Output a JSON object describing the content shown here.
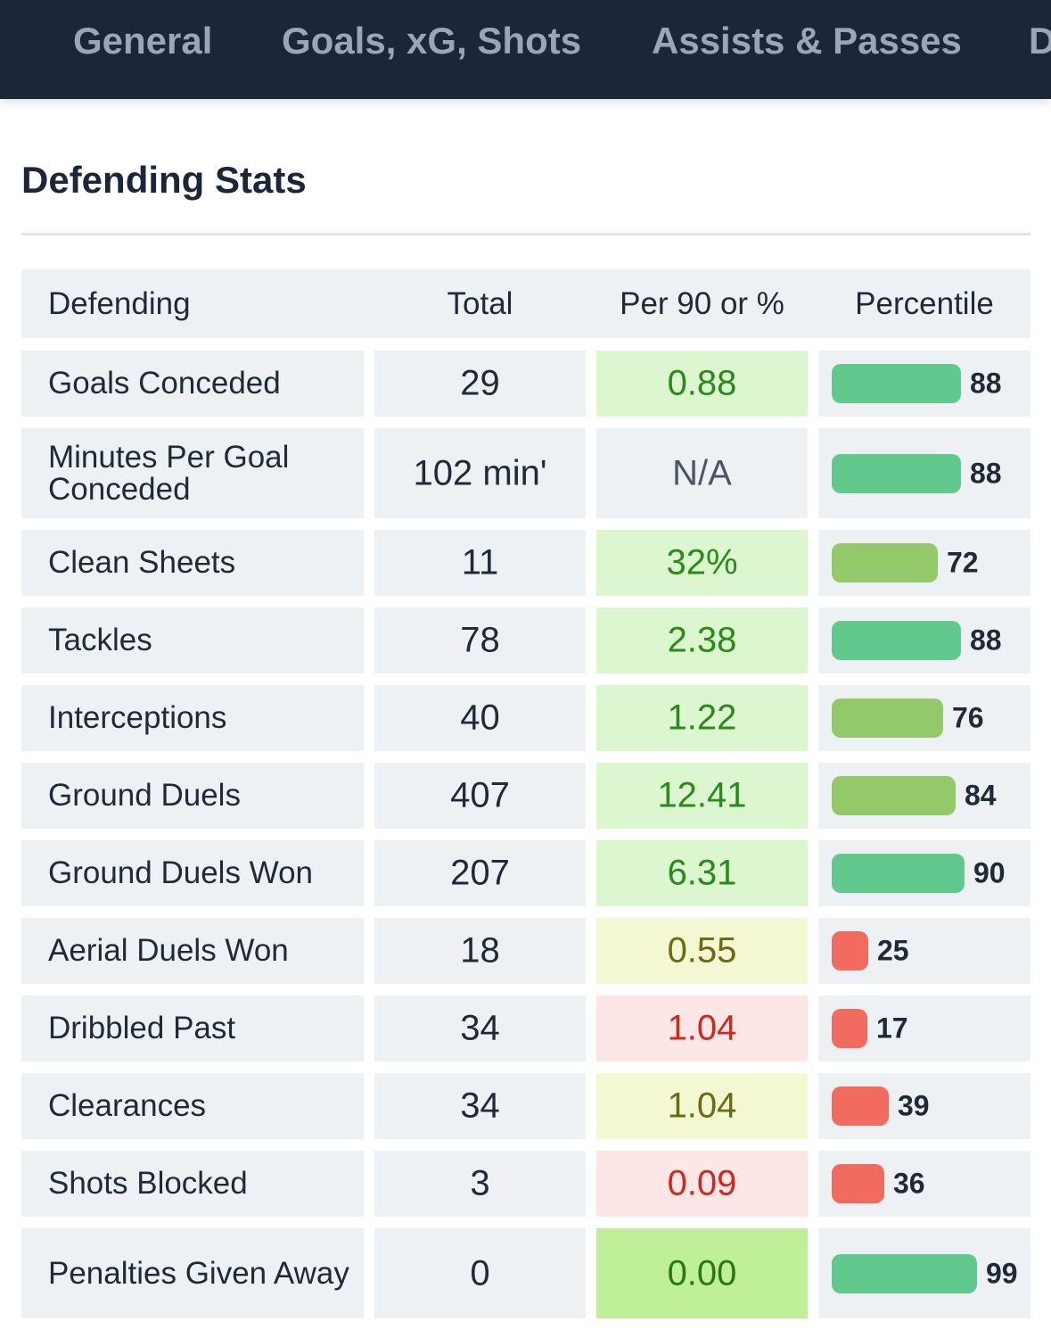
{
  "nav": {
    "tabs": [
      "General",
      "Goals, xG, Shots",
      "Assists & Passes",
      "D"
    ]
  },
  "section": {
    "title": "Defending Stats"
  },
  "table": {
    "headers": {
      "name": "Defending",
      "total": "Total",
      "per90": "Per 90 or %",
      "percentile": "Percentile"
    },
    "rows": [
      {
        "name": "Goals Conceded",
        "total": "29",
        "per90": "0.88",
        "percentile": "88",
        "percentile_value": 88,
        "tier": "good"
      },
      {
        "name": "Minutes Per Goal Conceded",
        "total": "102 min'",
        "per90": "N/A",
        "percentile": "88",
        "percentile_value": 88,
        "tier": "none"
      },
      {
        "name": "Clean Sheets",
        "total": "11",
        "per90": "32%",
        "percentile": "72",
        "percentile_value": 72,
        "tier": "good"
      },
      {
        "name": "Tackles",
        "total": "78",
        "per90": "2.38",
        "percentile": "88",
        "percentile_value": 88,
        "tier": "good"
      },
      {
        "name": "Interceptions",
        "total": "40",
        "per90": "1.22",
        "percentile": "76",
        "percentile_value": 76,
        "tier": "good"
      },
      {
        "name": "Ground Duels",
        "total": "407",
        "per90": "12.41",
        "percentile": "84",
        "percentile_value": 84,
        "tier": "good"
      },
      {
        "name": "Ground Duels Won",
        "total": "207",
        "per90": "6.31",
        "percentile": "90",
        "percentile_value": 90,
        "tier": "good"
      },
      {
        "name": "Aerial Duels Won",
        "total": "18",
        "per90": "0.55",
        "percentile": "25",
        "percentile_value": 25,
        "tier": "mid"
      },
      {
        "name": "Dribbled Past",
        "total": "34",
        "per90": "1.04",
        "percentile": "17",
        "percentile_value": 17,
        "tier": "bad"
      },
      {
        "name": "Clearances",
        "total": "34",
        "per90": "1.04",
        "percentile": "39",
        "percentile_value": 39,
        "tier": "mid"
      },
      {
        "name": "Shots Blocked",
        "total": "3",
        "per90": "0.09",
        "percentile": "36",
        "percentile_value": 36,
        "tier": "bad"
      },
      {
        "name": "Penalties Given Away",
        "total": "0",
        "per90": "0.00",
        "percentile": "99",
        "percentile_value": 99,
        "tier": "best"
      }
    ]
  },
  "colors": {
    "nav_bg": "#1b263b",
    "cell_bg": "#eef1f4",
    "tier_good_bg": "#dcf7d0",
    "tier_good_text": "#2a8a1a",
    "tier_best_bg": "#c0ef9a",
    "tier_best_text": "#257a14",
    "tier_mid_bg": "#f3f7d2",
    "tier_mid_text": "#6b6b12",
    "tier_bad_bg": "#fde6e6",
    "tier_bad_text": "#d0281c",
    "tier_none_bg": "#eef1f4",
    "tier_none_text": "#4b5563",
    "bar_high": "#61c98e",
    "bar_midhigh": "#93c968",
    "bar_low": "#f16c5f"
  }
}
